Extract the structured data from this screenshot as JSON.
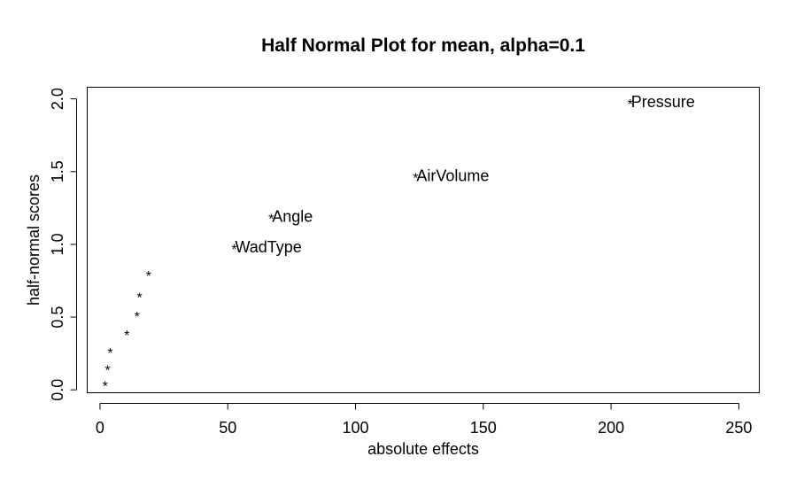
{
  "chart_data": {
    "type": "scatter",
    "title": "Half Normal Plot for mean, alpha=0.1",
    "xlabel": "absolute effects",
    "ylabel": "half-normal scores",
    "xlim": [
      -5,
      258
    ],
    "ylim": [
      -0.02,
      2.08
    ],
    "xticks": [
      0,
      50,
      100,
      150,
      200,
      250
    ],
    "yticks": [
      0.0,
      0.5,
      1.0,
      1.5,
      2.0
    ],
    "xtick_labels": [
      "0",
      "50",
      "100",
      "150",
      "200",
      "250"
    ],
    "ytick_labels": [
      "0.0",
      "0.5",
      "1.0",
      "1.5",
      "2.0"
    ],
    "marker": "*",
    "grid": false,
    "points": [
      {
        "x": 2,
        "y": 0.04,
        "label": ""
      },
      {
        "x": 3,
        "y": 0.15,
        "label": ""
      },
      {
        "x": 4,
        "y": 0.27,
        "label": ""
      },
      {
        "x": 10.5,
        "y": 0.39,
        "label": ""
      },
      {
        "x": 14.5,
        "y": 0.52,
        "label": ""
      },
      {
        "x": 15.5,
        "y": 0.65,
        "label": ""
      },
      {
        "x": 19,
        "y": 0.8,
        "label": ""
      },
      {
        "x": 52.5,
        "y": 0.98,
        "label": "WadType"
      },
      {
        "x": 67,
        "y": 1.19,
        "label": "Angle"
      },
      {
        "x": 123.5,
        "y": 1.47,
        "label": "AirVolume"
      },
      {
        "x": 207.5,
        "y": 1.98,
        "label": "Pressure"
      }
    ]
  }
}
